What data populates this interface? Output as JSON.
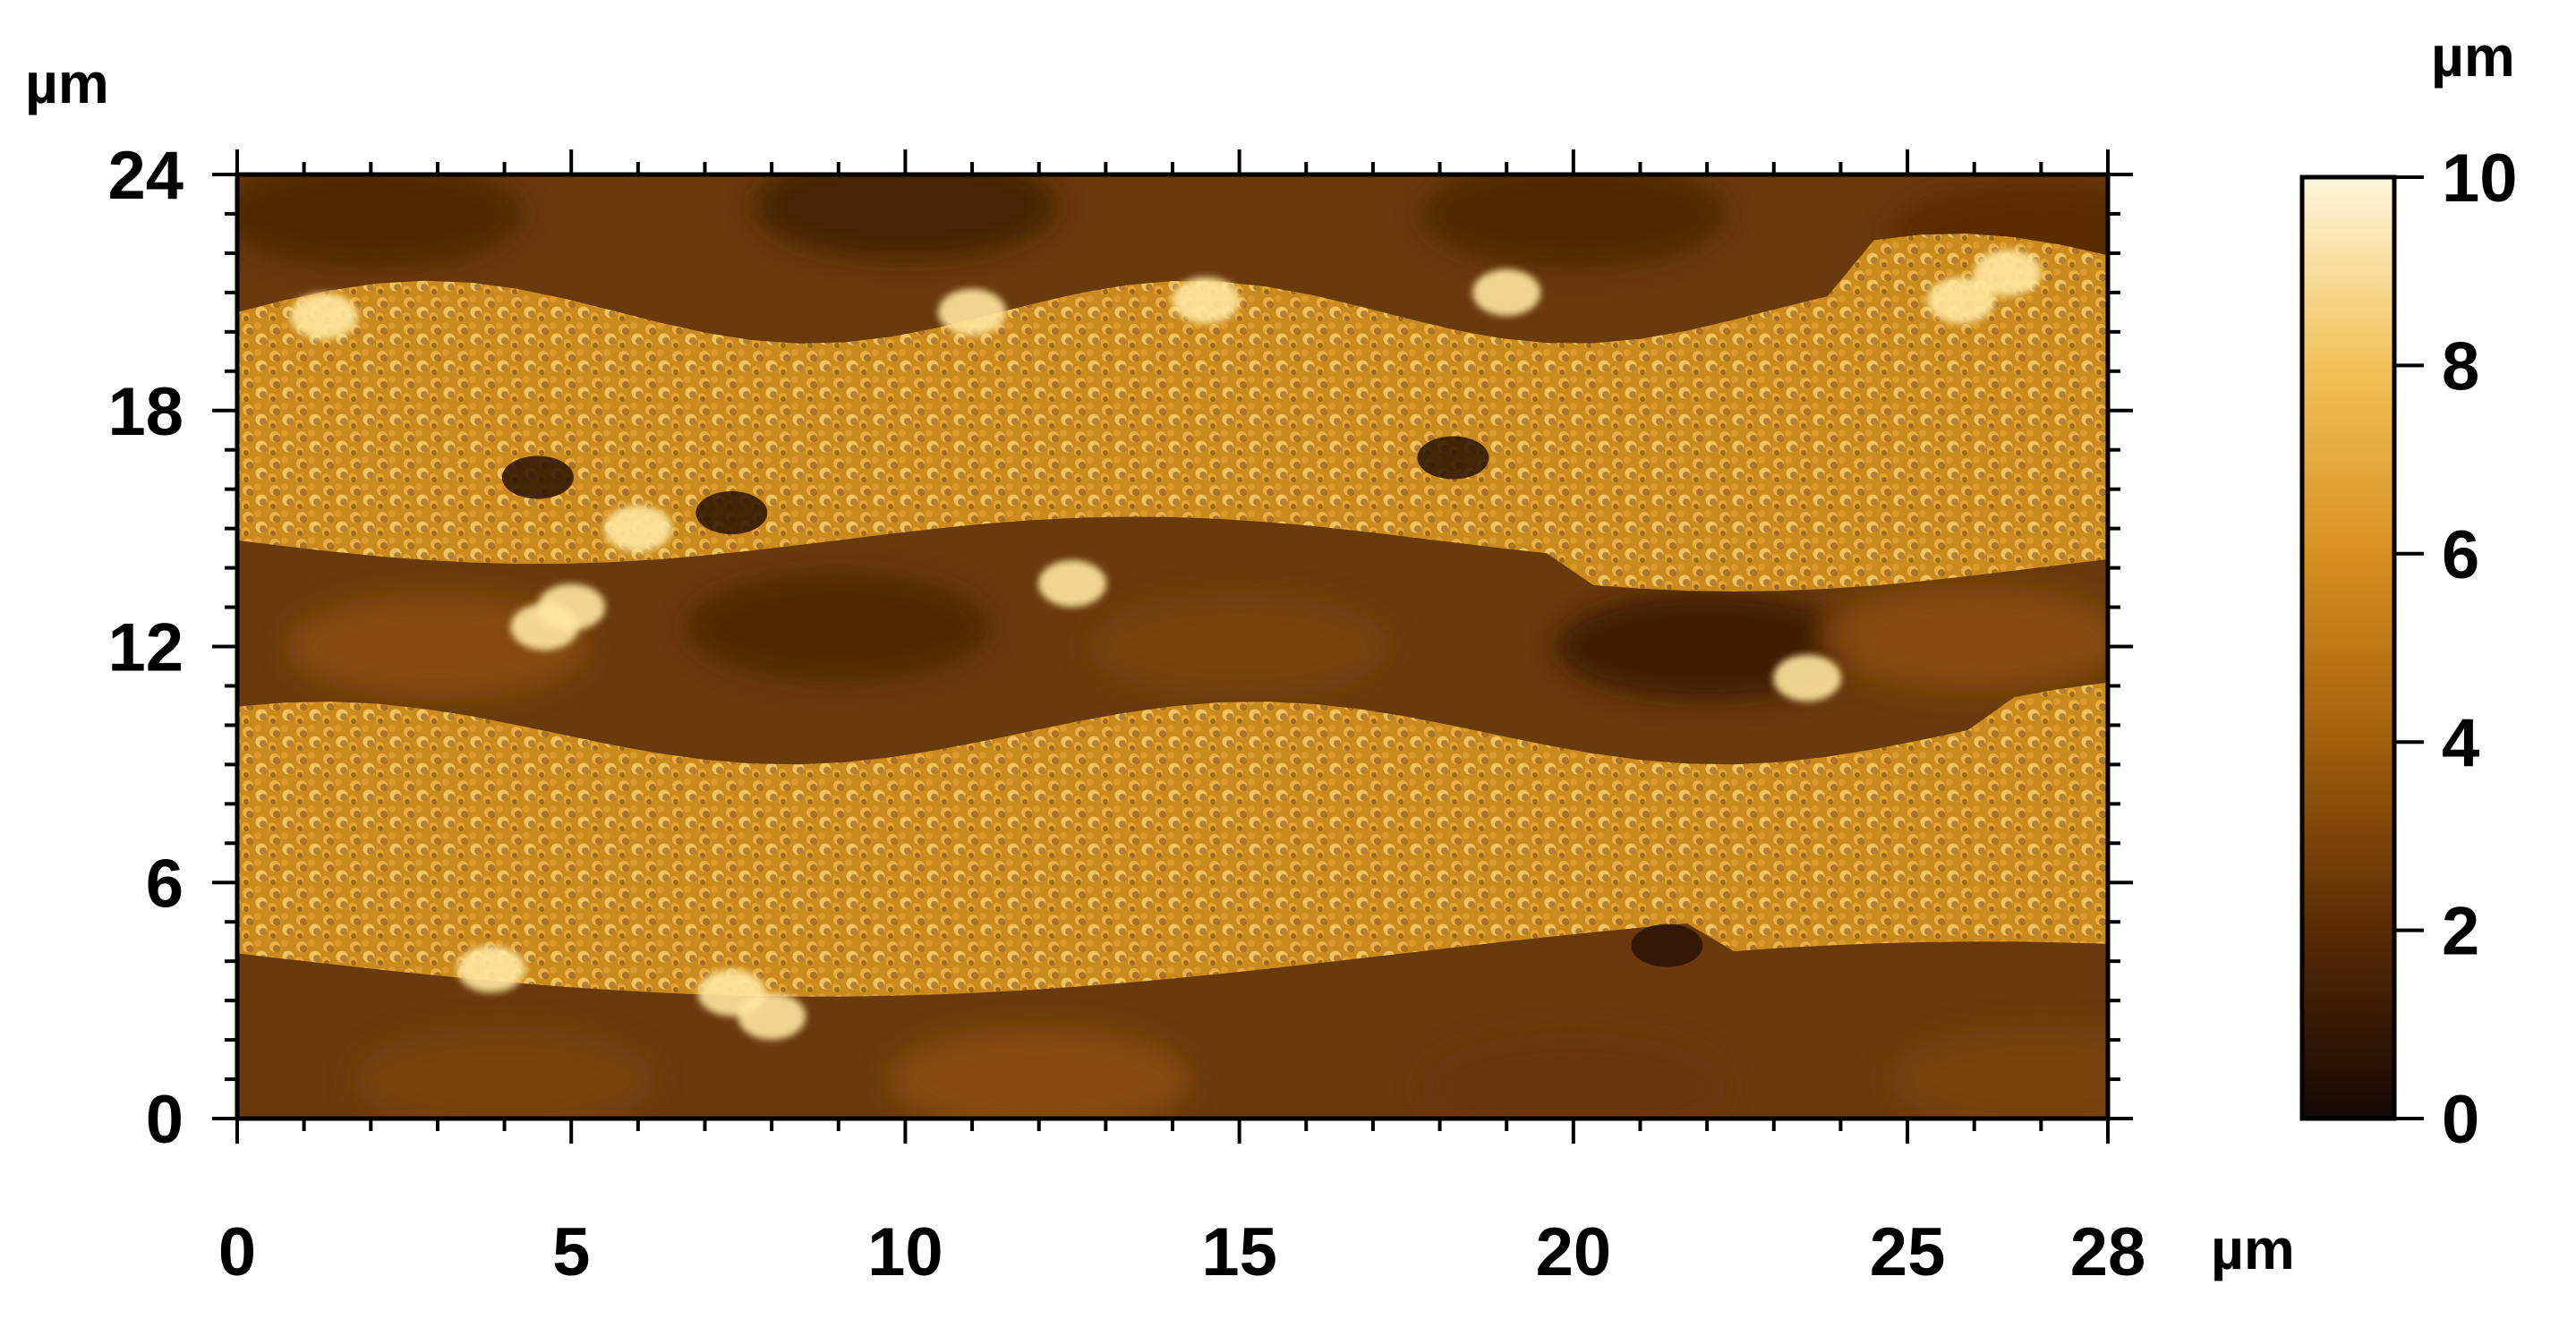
{
  "figure": {
    "type": "afm-topography-image",
    "x_axis": {
      "unit": "µm",
      "range": [
        0,
        28
      ],
      "tick_labels": [
        "0",
        "5",
        "10",
        "15",
        "20",
        "25",
        "28"
      ],
      "tick_values": [
        0,
        5,
        10,
        15,
        20,
        25,
        28
      ]
    },
    "y_axis": {
      "unit": "µm",
      "range": [
        0,
        24
      ],
      "tick_labels": [
        "0",
        "6",
        "12",
        "18",
        "24"
      ],
      "tick_values": [
        0,
        6,
        12,
        18,
        24
      ]
    },
    "colorbar": {
      "unit": "µm",
      "range": [
        0,
        10
      ],
      "tick_labels": [
        "0",
        "2",
        "4",
        "6",
        "8",
        "10"
      ],
      "tick_values": [
        0,
        2,
        4,
        6,
        8,
        10
      ],
      "colormap": [
        "#140804",
        "#5a2a05",
        "#a25e0c",
        "#d89020",
        "#f3c25a",
        "#fff6dc"
      ]
    },
    "scene": {
      "description_free_regions": {
        "bands_of_particles_y_um": [
          [
            3,
            10
          ],
          [
            14,
            21
          ]
        ],
        "background_color": "#6a3a0c",
        "band_color": "#c98a1e",
        "bright_highlight_color": "#ffe7a0"
      }
    }
  }
}
